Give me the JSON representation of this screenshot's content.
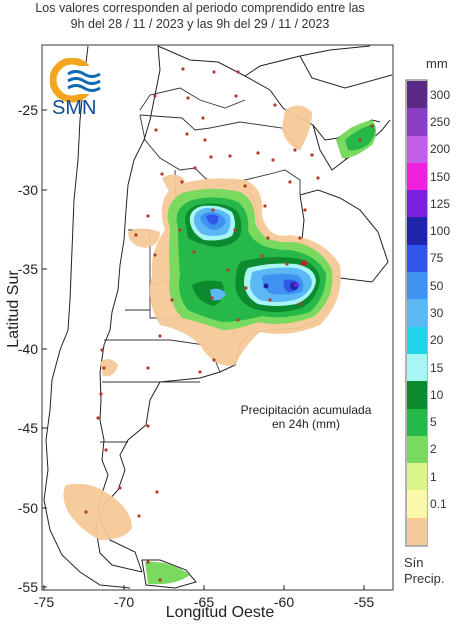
{
  "header": {
    "line1": "Los valores corresponden al periodo comprendido entre las",
    "line2": "9h del 28 / 11 / 2023  y las 9h del 29 / 11 / 2023"
  },
  "axes": {
    "ylabel": "Latitud Sur",
    "xlabel": "Longitud Oeste",
    "yticks": [
      "-25",
      "-30",
      "-35",
      "-40",
      "-45",
      "-50",
      "-55"
    ],
    "xticks": [
      "-75",
      "-70",
      "-65",
      "-60",
      "-55"
    ],
    "lon_range": [
      -75,
      -53
    ],
    "lat_range": [
      -55.4,
      -21.5
    ]
  },
  "note": {
    "line1": "Precipitación acumulada",
    "line2": "en 24h (mm)"
  },
  "logo": {
    "text": "SMN"
  },
  "legend": {
    "unit": "mm",
    "items": [
      {
        "label": "300",
        "color": "#5a2a86"
      },
      {
        "label": "250",
        "color": "#8a3fc2"
      },
      {
        "label": "200",
        "color": "#c35ee8"
      },
      {
        "label": "150",
        "color": "#ee22dd"
      },
      {
        "label": "125",
        "color": "#7a1fe0"
      },
      {
        "label": "100",
        "color": "#1f24a8"
      },
      {
        "label": "75",
        "color": "#2f58ea"
      },
      {
        "label": "50",
        "color": "#3f92f0"
      },
      {
        "label": "30",
        "color": "#5cb7f5"
      },
      {
        "label": "20",
        "color": "#20d4ea"
      },
      {
        "label": "15",
        "color": "#a7f6f4"
      },
      {
        "label": "10",
        "color": "#0b8a2e"
      },
      {
        "label": "5",
        "color": "#27b84a"
      },
      {
        "label": "2",
        "color": "#7ada5f"
      },
      {
        "label": "1",
        "color": "#dbf58a"
      },
      {
        "label": "0.1",
        "color": "#fbf7a8"
      },
      {
        "label": "",
        "color": "#f6c998"
      }
    ],
    "no_precip_line1": "Sín",
    "no_precip_line2": "Precip."
  }
}
